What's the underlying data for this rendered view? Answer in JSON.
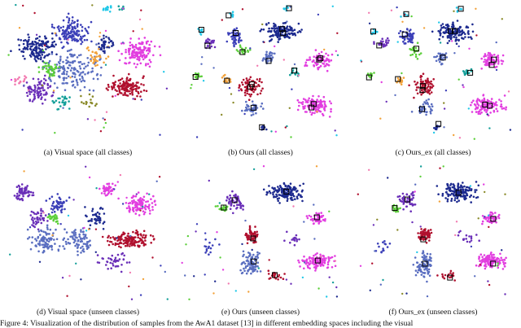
{
  "figure": {
    "caption_visible": "Figure 4:  Visualization of the distribution of samples from the AwA1 dataset [13] in different embedding spaces including the visual"
  },
  "panels": [
    {
      "caption": "(a)  Visual space (all classes)",
      "seed": 11,
      "mode": "dense"
    },
    {
      "caption": "(b)  Ours (all classes)",
      "seed": 23,
      "mode": "sparse"
    },
    {
      "caption": "(c)  Ours_ex (all classes)",
      "seed": 37,
      "mode": "sparse"
    },
    {
      "caption": "(d)  Visual space (unseen classes)",
      "seed": 41,
      "mode": "dense_unseen"
    },
    {
      "caption": "(e)  Ours (unseen classes)",
      "seed": 53,
      "mode": "unseen"
    },
    {
      "caption": "(f)  Ours_ex (unseen classes)",
      "seed": 67,
      "mode": "unseen"
    }
  ],
  "colors": {
    "navy": "#1d2a8f",
    "blue": "#3b3fb8",
    "purple": "#6a2fb8",
    "magenta": "#e23ee0",
    "crimson": "#b0102e",
    "slate": "#5a6ec0",
    "green": "#5ccf3a",
    "teal": "#17a09a",
    "cyan": "#22c8e8",
    "orange": "#f2a23a",
    "olive": "#8a8a2a",
    "pink": "#f27ab0"
  }
}
